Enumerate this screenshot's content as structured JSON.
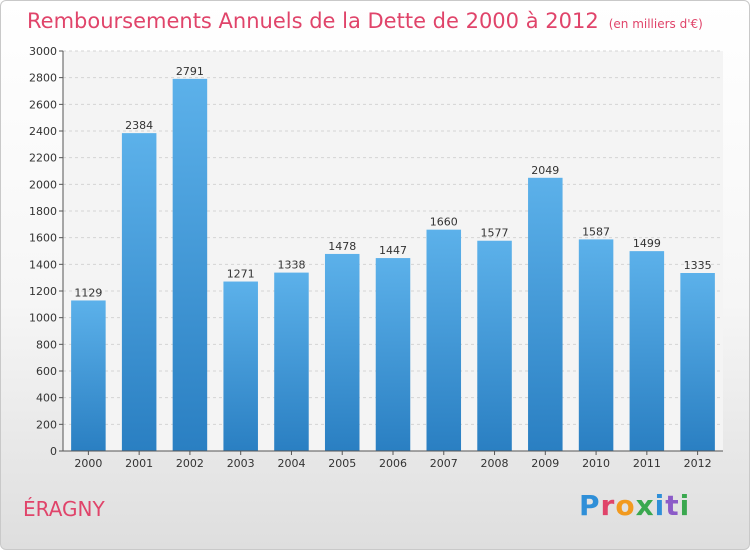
{
  "header": {
    "title": "Remboursements Annuels de la Dette de 2000 à 2012",
    "subtitle": "(en milliers d'€)"
  },
  "footer": {
    "city": "ÉRAGNY",
    "logo": "Proxiti",
    "logo_colors": [
      "#2f8fd8",
      "#e0446a",
      "#f29a1f",
      "#3aa84f",
      "#2f8fd8",
      "#8c5bc8",
      "#3aa84f"
    ]
  },
  "colors": {
    "bar_top": "#5cb1ea",
    "bar_bottom": "#2a7fc2",
    "accent": "#e0446a"
  },
  "chart_data": {
    "type": "bar",
    "categories": [
      "2000",
      "2001",
      "2002",
      "2003",
      "2004",
      "2005",
      "2006",
      "2007",
      "2008",
      "2009",
      "2010",
      "2011",
      "2012"
    ],
    "values": [
      1129,
      2384,
      2791,
      1271,
      1338,
      1478,
      1447,
      1660,
      1577,
      2049,
      1587,
      1499,
      1335
    ],
    "ylim": [
      0,
      3000
    ],
    "yticks": [
      0,
      200,
      400,
      600,
      800,
      1000,
      1200,
      1400,
      1600,
      1800,
      2000,
      2200,
      2400,
      2600,
      2800,
      3000
    ],
    "grid": true,
    "data_labels": true
  }
}
